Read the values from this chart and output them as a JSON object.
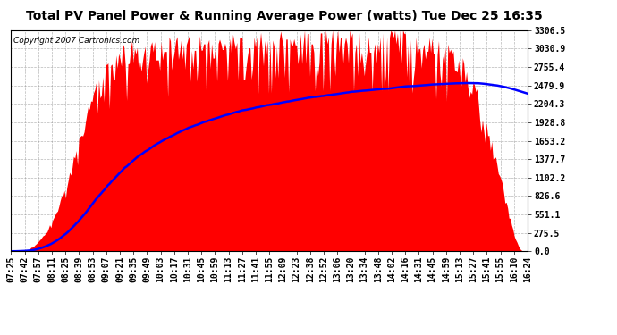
{
  "title": "Total PV Panel Power & Running Average Power (watts) Tue Dec 25 16:35",
  "copyright_text": "Copyright 2007 Cartronics.com",
  "ylabel_right_ticks": [
    0.0,
    275.5,
    551.1,
    826.6,
    1102.2,
    1377.7,
    1653.2,
    1928.8,
    2204.3,
    2479.9,
    2755.4,
    3030.9,
    3306.5
  ],
  "ymax": 3306.5,
  "ymin": 0.0,
  "bar_color": "#FF0000",
  "avg_line_color": "#0000FF",
  "background_color": "#FFFFFF",
  "grid_color": "#888888",
  "title_fontsize": 10,
  "copyright_fontsize": 6.5,
  "tick_fontsize": 7,
  "x_labels": [
    "07:25",
    "07:42",
    "07:57",
    "08:11",
    "08:25",
    "08:39",
    "08:53",
    "09:07",
    "09:21",
    "09:35",
    "09:49",
    "10:03",
    "10:17",
    "10:31",
    "10:45",
    "10:59",
    "11:13",
    "11:27",
    "11:41",
    "11:55",
    "12:09",
    "12:23",
    "12:38",
    "12:52",
    "13:06",
    "13:20",
    "13:34",
    "13:48",
    "14:02",
    "14:16",
    "14:31",
    "14:45",
    "14:59",
    "15:13",
    "15:27",
    "15:41",
    "15:55",
    "16:10",
    "16:24"
  ],
  "num_bars": 390,
  "pv_shape": [
    0,
    0,
    2,
    5,
    8,
    12,
    18,
    25,
    35,
    50,
    65,
    85,
    110,
    140,
    175,
    215,
    260,
    310,
    365,
    420,
    480,
    545,
    615,
    690,
    770,
    855,
    945,
    1040,
    1140,
    1245,
    1355,
    1465,
    1575,
    1685,
    1795,
    1900,
    2005,
    2110,
    2210,
    2305,
    2390,
    2470,
    2545,
    2615,
    2680,
    2735,
    2785,
    2828,
    2865,
    2895,
    2920,
    2940,
    2960,
    2975,
    2990,
    3000,
    3010,
    3020,
    3028,
    3035,
    3042,
    3048,
    3053,
    3058,
    3062,
    3065,
    3068,
    3070,
    3072,
    3074,
    3075,
    3076,
    3077,
    3078,
    3079,
    3080,
    3082,
    3084,
    3086,
    3087,
    3088,
    3089,
    3090,
    3091,
    3092,
    3093,
    3094,
    3095,
    3096,
    3097,
    3098,
    3099,
    3100,
    3101,
    3102,
    3103,
    3104,
    3105,
    3106,
    3107,
    3108,
    3109,
    3110,
    3112,
    3114,
    3116,
    3118,
    3120,
    3122,
    3124,
    3126,
    3128,
    3130,
    3132,
    3134,
    3136,
    3138,
    3140,
    3142,
    3144,
    3146,
    3148,
    3150,
    3152,
    3154,
    3156,
    3158,
    3160,
    3162,
    3164,
    3166,
    3168,
    3170,
    3172,
    3174,
    3176,
    3178,
    3180,
    3182,
    3184,
    3186,
    3188,
    3190,
    3192,
    3194,
    3196,
    3198,
    3200,
    3200,
    3200,
    3200,
    3200,
    3200,
    3200,
    3200,
    3200,
    3200,
    3200,
    3200,
    3200,
    3200,
    3200,
    3200,
    3200,
    3200,
    3200,
    3200,
    3200,
    3200,
    3200,
    3200,
    3200,
    3200,
    3200,
    3200,
    3200,
    3200,
    3200,
    3200,
    3200,
    3200,
    3200,
    3200,
    3200,
    3200,
    3200,
    3200,
    3200,
    3200,
    3200,
    3190,
    3180,
    3170,
    3160,
    3150,
    3140,
    3130,
    3120,
    3110,
    3100,
    3090,
    3080,
    3070,
    3060,
    3050,
    3040,
    3030,
    3020,
    3010,
    3000,
    2990,
    2975,
    2960,
    2940,
    2915,
    2885,
    2850,
    2810,
    2765,
    2715,
    2660,
    2600,
    2535,
    2465,
    2390,
    2310,
    2225,
    2135,
    2040,
    1940,
    1835,
    1725,
    1610,
    1490,
    1365,
    1237,
    1105,
    970,
    835,
    700,
    568,
    440,
    320,
    210,
    120,
    55,
    18,
    5,
    1,
    0
  ]
}
